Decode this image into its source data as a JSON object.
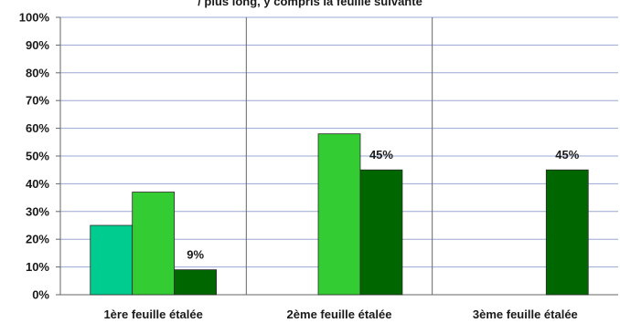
{
  "header": {
    "title_fragment": "/ plus long, y compris la feuille suivante"
  },
  "chart_data": {
    "type": "bar",
    "categories": [
      "1ère feuille étalée",
      "2ème feuille étalée",
      "3ème feuille étalée"
    ],
    "series": [
      {
        "values": [
          25,
          null,
          null
        ],
        "color": "#00cc8f"
      },
      {
        "values": [
          37,
          58,
          null
        ],
        "color": "#33cc33"
      },
      {
        "values": [
          9,
          45,
          45
        ],
        "color": "#006600"
      }
    ],
    "data_labels": [
      {
        "category_index": 0,
        "series_index": 2,
        "text": "9%"
      },
      {
        "category_index": 1,
        "series_index": 2,
        "text": "45%"
      },
      {
        "category_index": 2,
        "series_index": 2,
        "text": "45%"
      }
    ],
    "y_ticks": [
      "0%",
      "10%",
      "20%",
      "30%",
      "40%",
      "50%",
      "60%",
      "70%",
      "80%",
      "90%",
      "100%"
    ],
    "ylim": [
      0,
      100
    ],
    "grid": true,
    "legend": "none"
  }
}
